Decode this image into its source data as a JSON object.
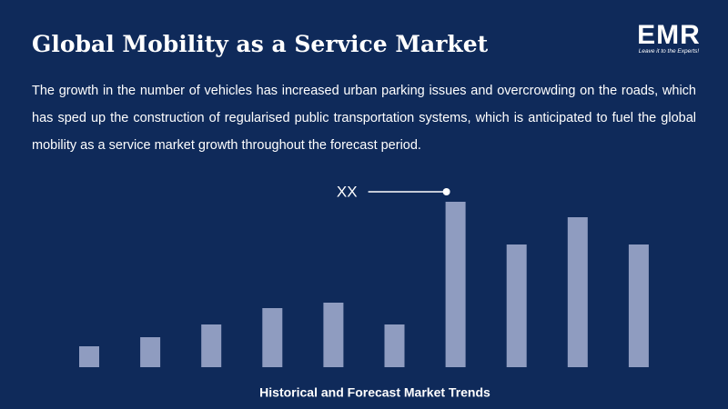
{
  "header": {
    "title": "Global Mobility as a Service Market",
    "description": "The growth in the number of vehicles has increased urban parking issues and overcrowding on the roads, which has sped up the construction of regularised public transportation systems, which is anticipated to fuel the global mobility as a service market growth throughout the forecast period."
  },
  "logo": {
    "text": "EMR",
    "tagline": "Leave it to the Experts!"
  },
  "chart_data": {
    "type": "bar",
    "title": "Historical and Forecast Market Trends",
    "values": [
      23,
      33,
      47,
      65,
      71,
      47,
      182,
      135,
      165,
      135
    ],
    "color": "#8f9cc0",
    "annotation": "XX"
  }
}
